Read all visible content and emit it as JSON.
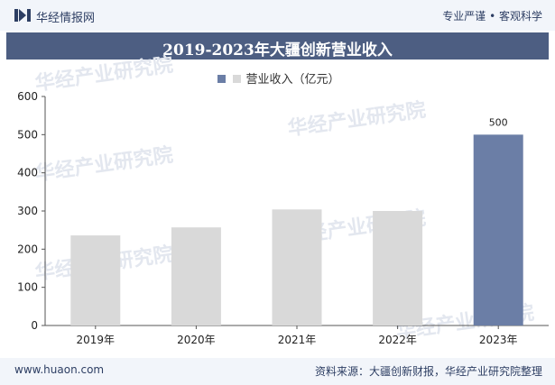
{
  "header": {
    "brand": "华经情报网",
    "tagline": "专业严谨 • 客观科学"
  },
  "footer": {
    "website": "www.huaon.com",
    "source": "资料来源：大疆创新财报，华经产业研究院整理"
  },
  "watermark": "华经产业研究院",
  "colors": {
    "primary": "#4d5e82",
    "bar": "#d9d9d9",
    "bar_highlight": "#6b7ea6",
    "header_bg": "#f2f5fa"
  },
  "chart_data": {
    "type": "bar",
    "title": "2019-2023年大疆创新营业收入",
    "legend": [
      {
        "label": "营业收入（亿元）",
        "color": "#6b7ea6"
      }
    ],
    "series": [
      {
        "name": "营业收入（亿元）",
        "values": [
          236,
          257,
          304,
          300,
          500
        ]
      }
    ],
    "categories": [
      "2019年",
      "2020年",
      "2021年",
      "2022年",
      "2023年"
    ],
    "data_labels": [
      "",
      "",
      "",
      "",
      "500"
    ],
    "highlight_index": 4,
    "ylim": [
      0,
      600
    ],
    "yticks": [
      0,
      100,
      200,
      300,
      400,
      500,
      600
    ],
    "grid": false
  }
}
